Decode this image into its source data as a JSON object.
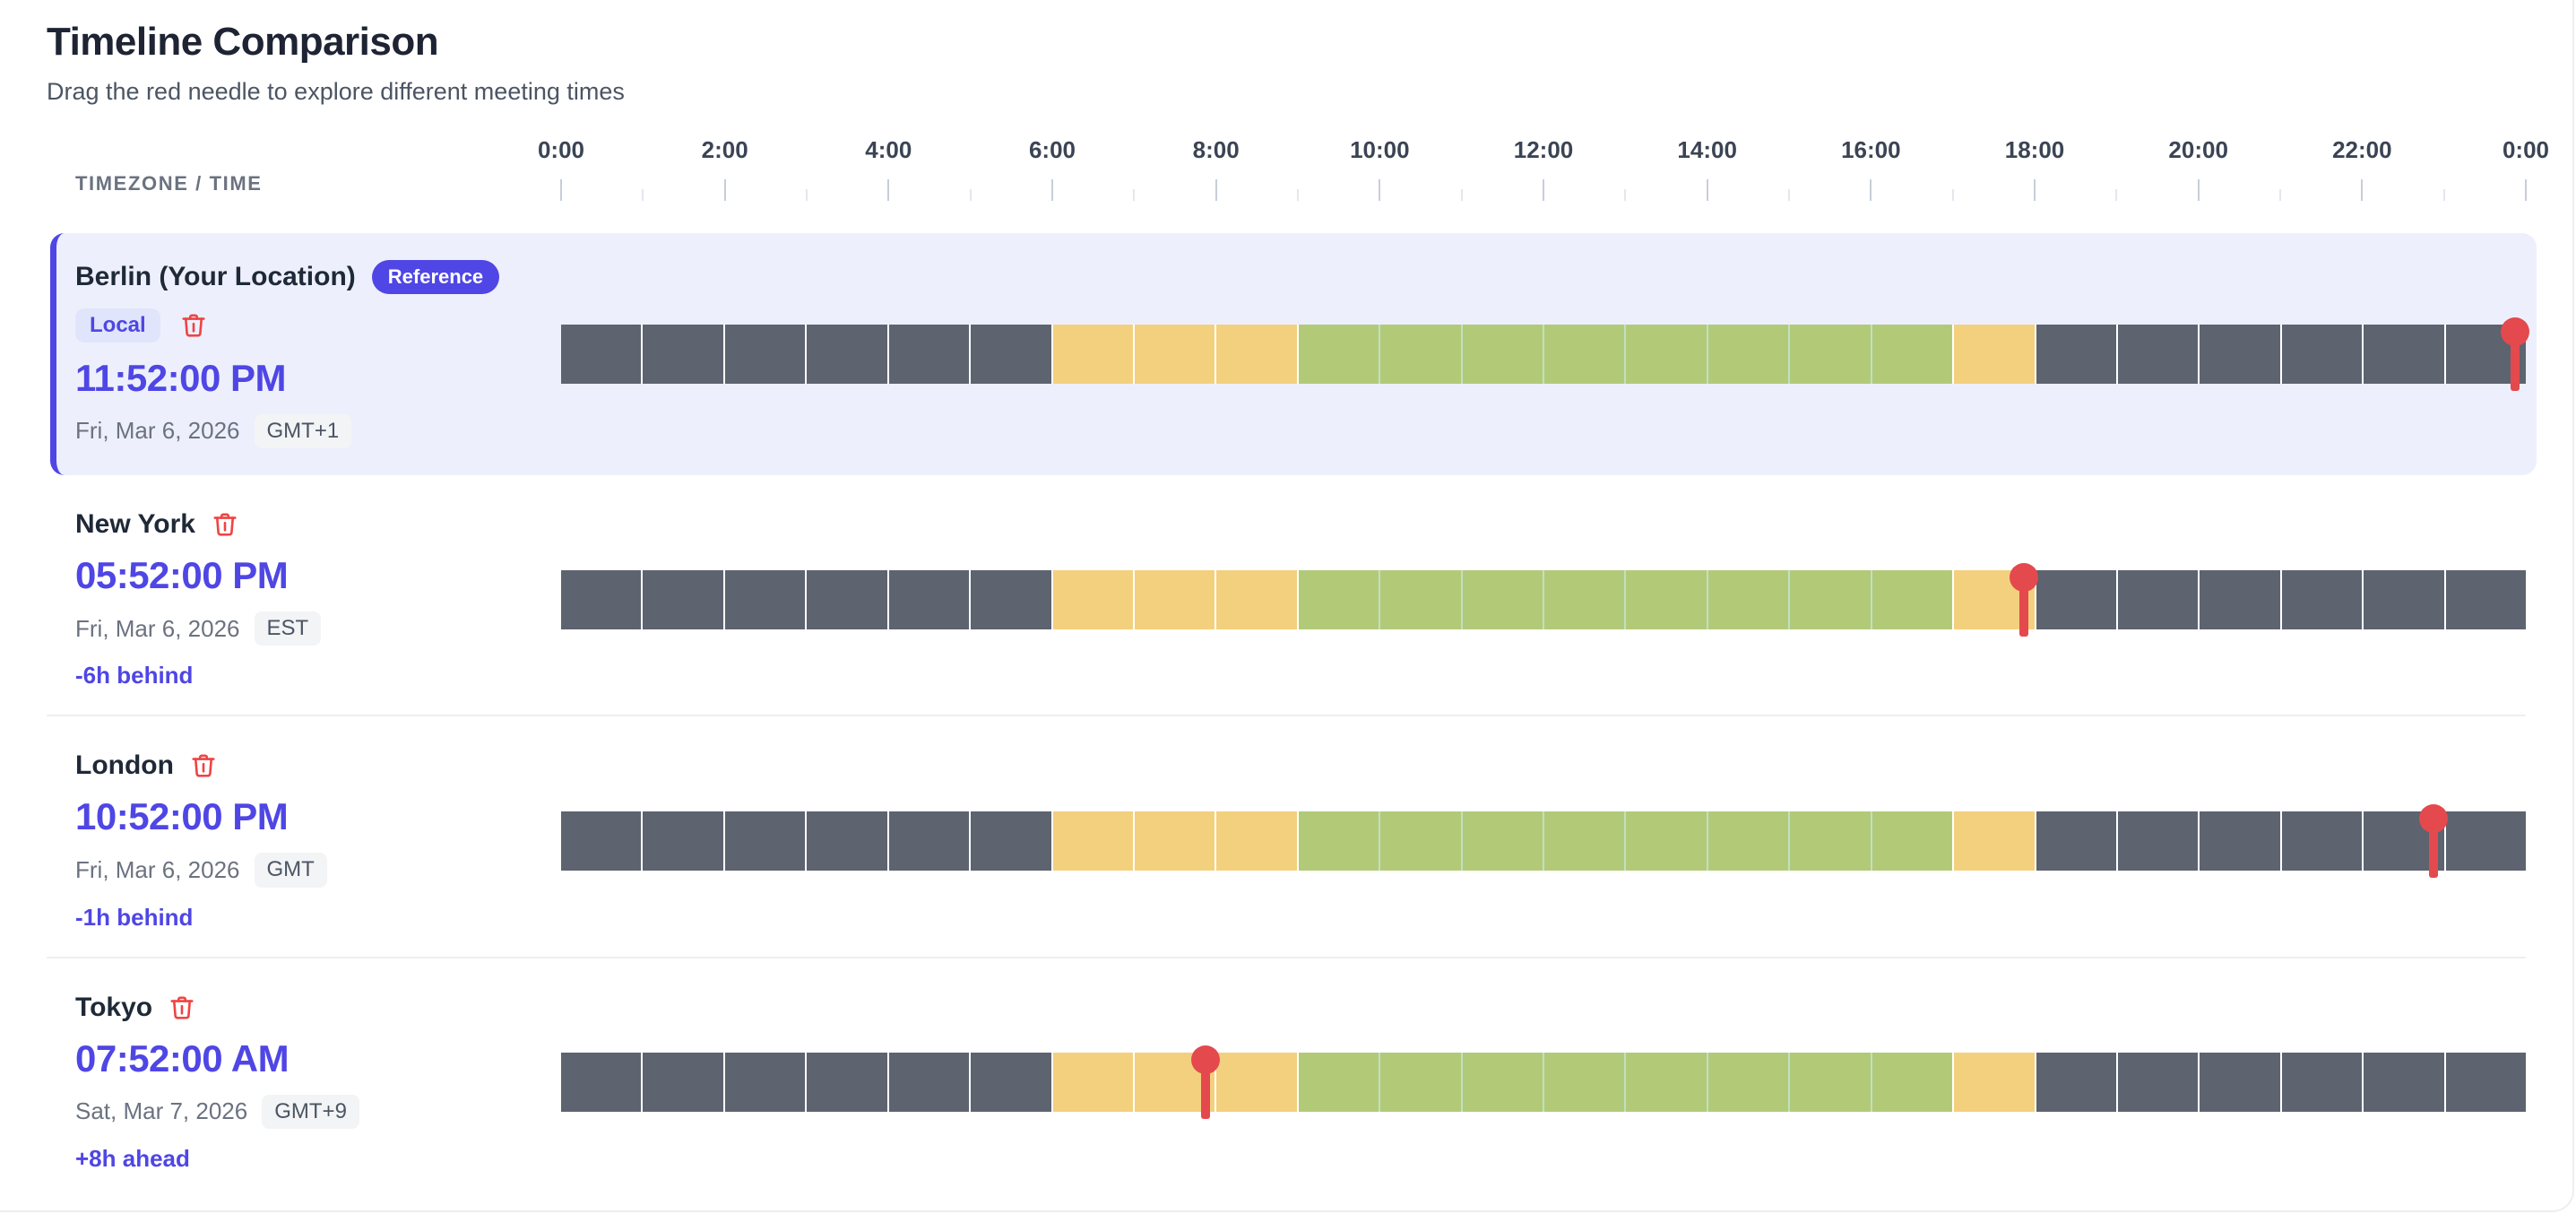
{
  "page": {
    "title": "Timeline Comparison",
    "subtitle": "Drag the red needle to explore different meeting times"
  },
  "axis": {
    "column_header": "TIMEZONE / TIME",
    "hour_span": 24,
    "labels": [
      "0:00",
      "2:00",
      "4:00",
      "6:00",
      "8:00",
      "10:00",
      "12:00",
      "14:00",
      "16:00",
      "18:00",
      "20:00",
      "22:00",
      "0:00"
    ],
    "label_every_hours": 2
  },
  "colors": {
    "accent": "#4f46e5",
    "night": "#5d636f",
    "shoulder": "#f3d07e",
    "work": "#b2ca78",
    "work_gap": "#bfe0c4",
    "segment_gap": "#ffffff",
    "needle": "#e4494d",
    "trash": "#ef4444",
    "reference_card_bg": "#edf0fc",
    "divider": "#edeef2"
  },
  "timeline_pattern": {
    "segments": [
      {
        "type": "night",
        "from": 0,
        "to": 6
      },
      {
        "type": "shoulder",
        "from": 6,
        "to": 9
      },
      {
        "type": "work",
        "from": 9,
        "to": 17
      },
      {
        "type": "shoulder",
        "from": 17,
        "to": 18
      },
      {
        "type": "night",
        "from": 18,
        "to": 24
      }
    ]
  },
  "rows": [
    {
      "name": "Berlin (Your Location)",
      "reference": true,
      "reference_badge": "Reference",
      "local_badge": "Local",
      "time": "11:52:00 PM",
      "date": "Fri, Mar 6, 2026",
      "tz": "GMT+1",
      "offset": null,
      "needle_hour": 23.867
    },
    {
      "name": "New York",
      "reference": false,
      "time": "05:52:00 PM",
      "date": "Fri, Mar 6, 2026",
      "tz": "EST",
      "offset": "-6h behind",
      "needle_hour": 17.867
    },
    {
      "name": "London",
      "reference": false,
      "time": "10:52:00 PM",
      "date": "Fri, Mar 6, 2026",
      "tz": "GMT",
      "offset": "-1h behind",
      "needle_hour": 22.867
    },
    {
      "name": "Tokyo",
      "reference": false,
      "time": "07:52:00 AM",
      "date": "Sat, Mar 7, 2026",
      "tz": "GMT+9",
      "offset": "+8h ahead",
      "needle_hour": 7.867
    }
  ]
}
